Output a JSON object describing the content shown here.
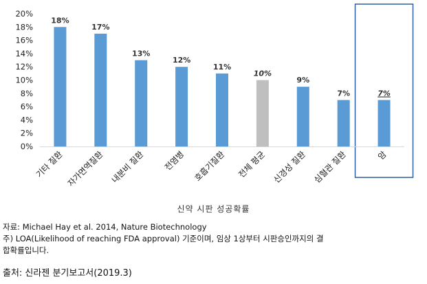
{
  "chart_data": {
    "type": "bar",
    "categories": [
      "기타 질환",
      "자가면역질환",
      "내분비 질환",
      "전염병",
      "호흡기질환",
      "전체 평균",
      "신경성 질환",
      "심혈관 질환",
      "암"
    ],
    "values": [
      18,
      17,
      13,
      12,
      11,
      10,
      9,
      7,
      7
    ],
    "data_labels": [
      "18%",
      "17%",
      "13%",
      "12%",
      "11%",
      "10%",
      "9%",
      "7%",
      "7%"
    ],
    "bar_colors": [
      "#5b9bd5",
      "#5b9bd5",
      "#5b9bd5",
      "#5b9bd5",
      "#5b9bd5",
      "#bfbfbf",
      "#5b9bd5",
      "#5b9bd5",
      "#5b9bd5"
    ],
    "italic_labels": [
      false,
      false,
      false,
      false,
      false,
      true,
      false,
      false,
      true
    ],
    "y_ticks": [
      "0%",
      "2%",
      "4%",
      "6%",
      "8%",
      "10%",
      "12%",
      "14%",
      "16%",
      "18%",
      "20%"
    ],
    "ylim": [
      0,
      20
    ],
    "grid": false,
    "highlight_category": "암",
    "highlight_color": "#2e5f9e",
    "title": "",
    "xlabel": "",
    "ylabel": ""
  },
  "caption": "신약 시판 성공확률",
  "notes": {
    "line1": "자료: Michael Hay et al. 2014, Nature Biotechnology",
    "line2": "주) LOA(Likelihood of reaching FDA approval) 기준이며, 임상 1상부터 시판승인까지의 결",
    "line3": "합확률입니다."
  },
  "source": "출처: 신라젠 분기보고서(2019.3)"
}
